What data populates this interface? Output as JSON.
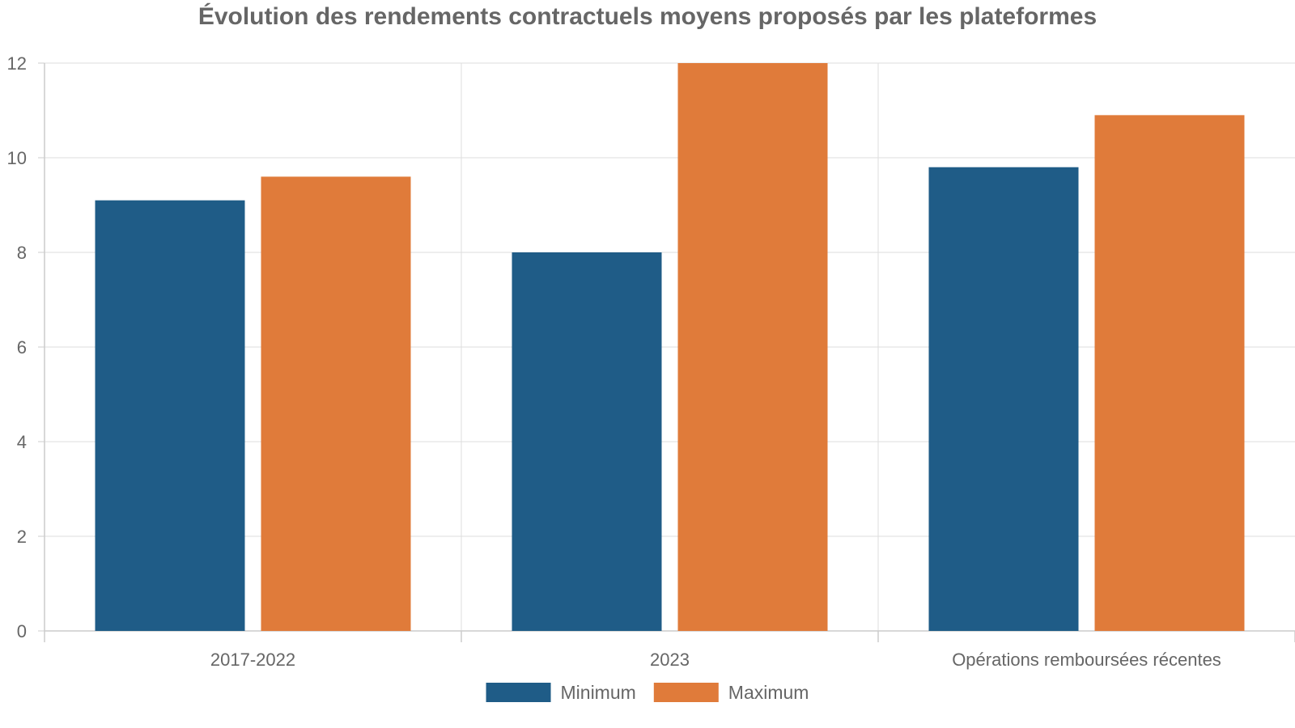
{
  "chart_data": {
    "type": "bar",
    "title": "Évolution des rendements contractuels moyens proposés par les plateformes",
    "xlabel": "",
    "ylabel": "",
    "categories": [
      "2017-2022",
      "2023",
      "Opérations remboursées récentes"
    ],
    "series": [
      {
        "name": "Minimum",
        "values": [
          9.1,
          8.0,
          9.8
        ],
        "color": "#1f5c87"
      },
      {
        "name": "Maximum",
        "values": [
          9.6,
          12.0,
          10.9
        ],
        "color": "#e07b3a"
      }
    ],
    "ylim": [
      0,
      12
    ],
    "yticks": [
      "0",
      "2",
      "4",
      "6",
      "8",
      "10",
      "12"
    ],
    "grid": true,
    "legend_position": "bottom-center"
  }
}
